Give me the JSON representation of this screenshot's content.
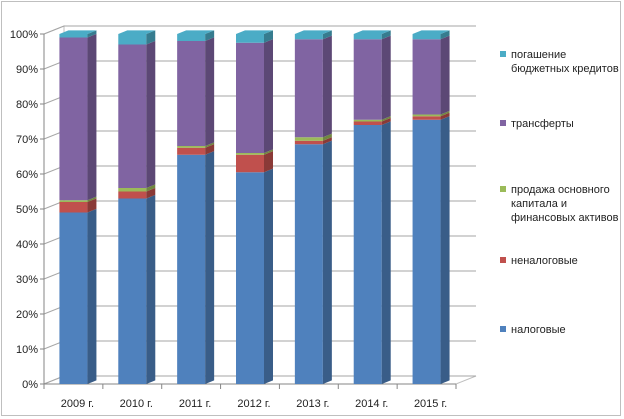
{
  "chart_data": {
    "type": "bar",
    "stacked": "percent",
    "three_d": true,
    "categories": [
      "2009 г.",
      "2010 г.",
      "2011 г.",
      "2012 г.",
      "2013 г.",
      "2014 г.",
      "2015 г."
    ],
    "series": [
      {
        "name": "налоговые",
        "color": "#4f81bd",
        "values": [
          49,
          53,
          65.5,
          60.5,
          68.5,
          74,
          75.5
        ]
      },
      {
        "name": "неналоговые",
        "color": "#c0504d",
        "values": [
          3,
          2,
          2,
          5,
          1,
          1,
          1
        ]
      },
      {
        "name": "продажа основного капитала и финансовых активов",
        "color": "#9bbb59",
        "values": [
          0.5,
          1,
          0.5,
          0.5,
          1,
          0.5,
          0.5
        ]
      },
      {
        "name": "трансферты",
        "color": "#8064a2",
        "values": [
          46.5,
          41,
          30,
          31.5,
          28,
          23,
          21.5
        ]
      },
      {
        "name": "погашение бюджетных кредитов",
        "color": "#4bacc6",
        "values": [
          1,
          3,
          2,
          2.5,
          1.5,
          1.5,
          1.5
        ]
      }
    ],
    "legend_order": [
      "погашение бюджетных кредитов",
      "трансферты",
      "продажа основного капитала и финансовых активов",
      "неналоговые",
      "налоговые"
    ],
    "legend_lines": {
      "погашение бюджетных кредитов": [
        "погашение",
        "бюджетных кредитов"
      ],
      "трансферты": [
        "трансферты"
      ],
      "продажа основного капитала и финансовых активов": [
        "продажа основного",
        "капитала и",
        "финансовых активов"
      ],
      "неналоговые": [
        "неналоговые"
      ],
      "налоговые": [
        "налоговые"
      ]
    },
    "y_ticks": [
      "0%",
      "10%",
      "20%",
      "30%",
      "40%",
      "50%",
      "60%",
      "70%",
      "80%",
      "90%",
      "100%"
    ],
    "ylim": [
      0,
      100
    ],
    "grid": true,
    "legend_position": "right",
    "title": "",
    "xlabel": "",
    "ylabel": ""
  }
}
